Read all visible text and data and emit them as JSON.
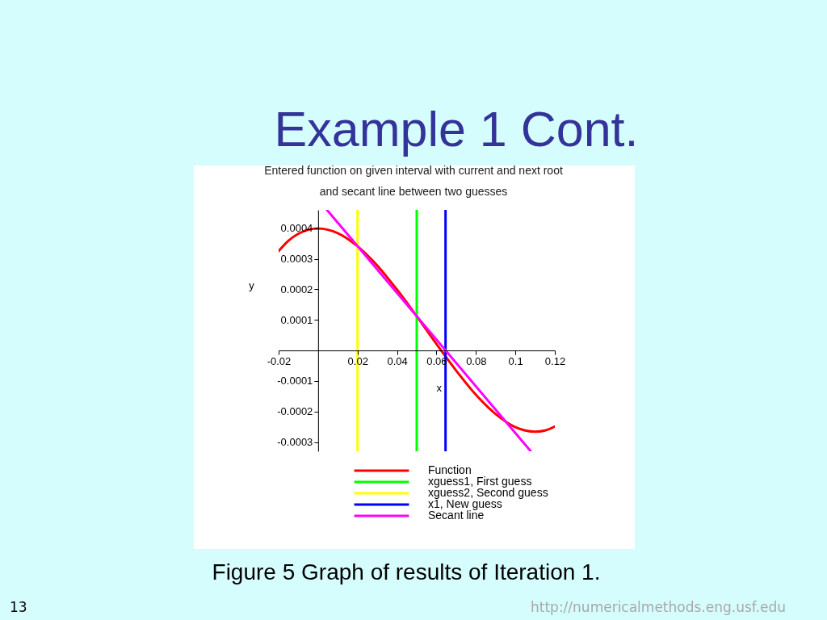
{
  "chart_data": {
    "type": "line",
    "title": "Example 1 Cont.",
    "subtitle": "Entered function on given interval with current and next root and secant line between two guesses",
    "xlabel": "x",
    "ylabel": "y",
    "xlim": [
      -0.02,
      0.12
    ],
    "ylim": [
      -0.00033,
      0.00046
    ],
    "xticks": [
      -0.02,
      0.02,
      0.04,
      0.06,
      0.08,
      0.1,
      0.12
    ],
    "yticks": [
      -0.0003,
      -0.0002,
      -0.0001,
      0.0001,
      0.0002,
      0.0003,
      0.0004
    ],
    "legend": "bottom",
    "series": [
      {
        "name": "Function",
        "color": "#ff0000",
        "x": [
          -0.02,
          -0.015,
          -0.01,
          -0.005,
          0,
          0.005,
          0.01,
          0.02,
          0.03,
          0.04,
          0.05,
          0.06,
          0.07,
          0.08,
          0.09,
          0.1,
          0.105,
          0.11,
          0.115,
          0.12
        ],
        "values": [
          0.000325,
          0.000359,
          0.000382,
          0.000395,
          0.000399,
          0.000395,
          0.000384,
          0.000341,
          0.000278,
          0.000199,
          0.000112,
          2.1e-05,
          -6.6e-05,
          -0.000145,
          -0.000208,
          -0.000251,
          -0.000262,
          -0.000266,
          -0.000262,
          -0.000249
        ]
      },
      {
        "name": "xguess1, First guess",
        "color": "#00ff00",
        "x": [
          0.05,
          0.05
        ],
        "values": [
          -0.00033,
          0.00046
        ]
      },
      {
        "name": "xguess2, Second guess",
        "color": "#ffff00",
        "x": [
          0.02,
          0.02
        ],
        "values": [
          -0.00033,
          0.00046
        ]
      },
      {
        "name": "x1, New guess",
        "color": "#0000ff",
        "x": [
          0.0646,
          0.0646
        ],
        "values": [
          -0.00033,
          0.00046
        ]
      },
      {
        "name": "Secant line",
        "color": "#ff00ff",
        "x": [
          0.0045,
          0.1078
        ],
        "values": [
          0.00046,
          -0.00033
        ]
      }
    ],
    "annotations": [
      "Figure 5 Graph of results of Iteration 1.",
      "13",
      "http://numericalmethods.eng.usf.edu"
    ]
  }
}
